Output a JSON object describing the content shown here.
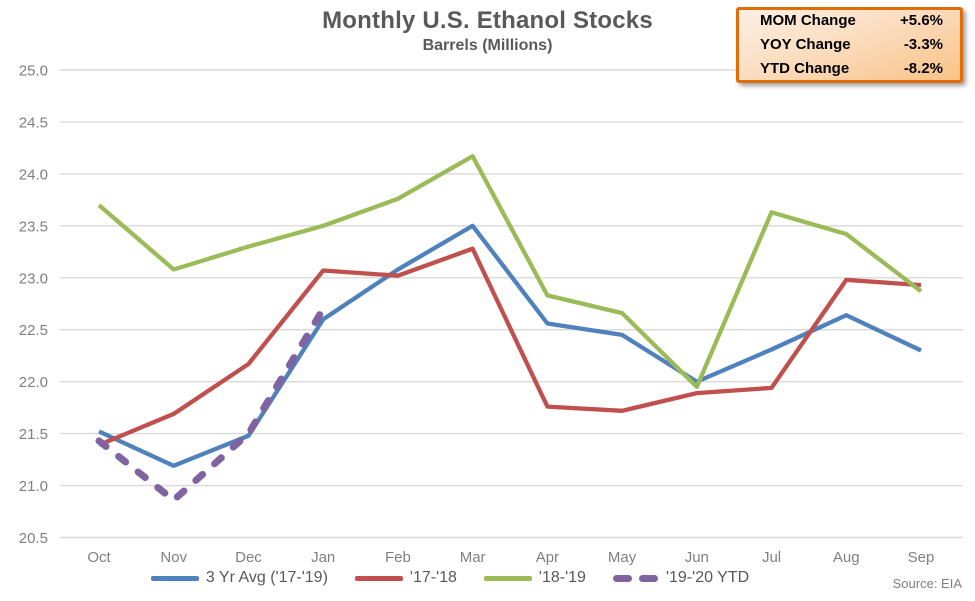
{
  "title": "Monthly U.S. Ethanol Stocks",
  "subtitle": "Barrels (Millions)",
  "source_note": "Source: EIA",
  "stats_box": {
    "border_color": "#e26b0a",
    "rows": [
      {
        "label": "MOM Change",
        "value": "+5.6%"
      },
      {
        "label": "YOY Change",
        "value": "-3.3%"
      },
      {
        "label": "YTD Change",
        "value": "-8.2%"
      }
    ]
  },
  "chart_data": {
    "type": "line",
    "title": "Monthly U.S. Ethanol Stocks",
    "subtitle": "Barrels (Millions)",
    "categories": [
      "Oct",
      "Nov",
      "Dec",
      "Jan",
      "Feb",
      "Mar",
      "Apr",
      "May",
      "Jun",
      "Jul",
      "Aug",
      "Sep"
    ],
    "series": [
      {
        "name": "3 Yr Avg ('17-'19)",
        "color": "#4f81bd",
        "dashed": false,
        "values": [
          21.52,
          21.19,
          21.48,
          22.6,
          23.08,
          23.5,
          22.56,
          22.45,
          22.0,
          22.31,
          22.64,
          22.3
        ]
      },
      {
        "name": "'17-'18",
        "color": "#c0504d",
        "dashed": false,
        "values": [
          21.39,
          21.69,
          22.17,
          23.07,
          23.02,
          23.28,
          21.76,
          21.72,
          21.89,
          21.94,
          22.98,
          22.93
        ]
      },
      {
        "name": "'18-'19",
        "color": "#9bbb59",
        "dashed": false,
        "values": [
          23.7,
          23.08,
          23.3,
          23.5,
          23.76,
          24.17,
          22.83,
          22.66,
          21.95,
          23.63,
          23.42,
          22.87
        ]
      },
      {
        "name": "'19-'20 YTD",
        "color": "#8064a2",
        "dashed": true,
        "values": [
          21.43,
          20.86,
          21.5,
          22.7,
          null,
          null,
          null,
          null,
          null,
          null,
          null,
          null
        ]
      }
    ],
    "ylim": [
      20.5,
      25.0
    ],
    "y_tick_step": 0.5,
    "y_tick_labels": [
      "25.0",
      "24.5",
      "24.0",
      "23.5",
      "23.0",
      "22.5",
      "22.0",
      "21.5",
      "21.0",
      "20.5"
    ],
    "grid": true,
    "gridline_color": "#d9d9d9",
    "legend_position": "bottom"
  }
}
